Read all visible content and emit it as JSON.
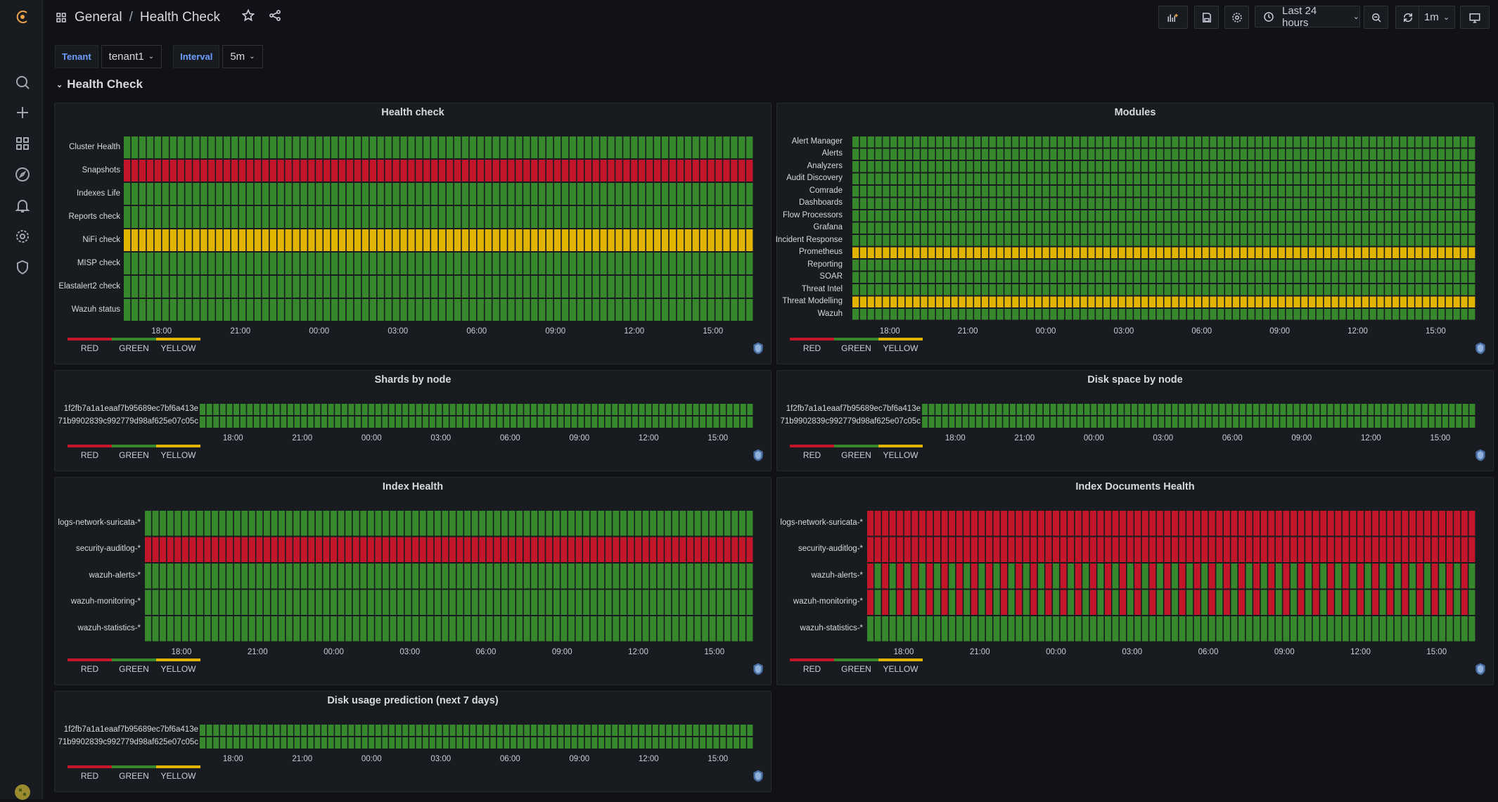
{
  "breadcrumb": {
    "folder": "General",
    "separator": "/",
    "title": "Health Check"
  },
  "toolbar": {
    "time_range": "Last 24 hours",
    "refresh": "1m"
  },
  "variables": [
    {
      "label": "Tenant",
      "value": "tenant1"
    },
    {
      "label": "Interval",
      "value": "5m"
    }
  ],
  "row": {
    "title": "Health Check"
  },
  "legend": [
    {
      "label": "RED",
      "color": "#c4162a"
    },
    {
      "label": "GREEN",
      "color": "#37872d"
    },
    {
      "label": "YELLOW",
      "color": "#e0b400"
    }
  ],
  "colors": {
    "RED": "#c4162a",
    "GREEN": "#37872d",
    "YELLOW": "#e0b400"
  },
  "time_ticks": [
    "18:00",
    "21:00",
    "00:00",
    "03:00",
    "06:00",
    "09:00",
    "12:00",
    "15:00"
  ],
  "panels": {
    "health_check": {
      "title": "Health check",
      "rows": [
        {
          "label": "Cluster Health",
          "status": "GREEN"
        },
        {
          "label": "Snapshots",
          "status": "RED"
        },
        {
          "label": "Indexes Life",
          "status": "GREEN"
        },
        {
          "label": "Reports check",
          "status": "GREEN"
        },
        {
          "label": "NiFi check",
          "status": "YELLOW"
        },
        {
          "label": "MISP check",
          "status": "GREEN"
        },
        {
          "label": "Elastalert2 check",
          "status": "GREEN"
        },
        {
          "label": "Wazuh status",
          "status": "GREEN"
        }
      ]
    },
    "modules": {
      "title": "Modules",
      "rows": [
        {
          "label": "Alert Manager",
          "status": "GREEN"
        },
        {
          "label": "Alerts",
          "status": "GREEN"
        },
        {
          "label": "Analyzers",
          "status": "GREEN"
        },
        {
          "label": "Audit Discovery",
          "status": "GREEN"
        },
        {
          "label": "Comrade",
          "status": "GREEN"
        },
        {
          "label": "Dashboards",
          "status": "GREEN"
        },
        {
          "label": "Flow Processors",
          "status": "GREEN"
        },
        {
          "label": "Grafana",
          "status": "GREEN"
        },
        {
          "label": "Incident Response",
          "status": "GREEN"
        },
        {
          "label": "Prometheus",
          "status": "YELLOW"
        },
        {
          "label": "Reporting",
          "status": "GREEN"
        },
        {
          "label": "SOAR",
          "status": "GREEN"
        },
        {
          "label": "Threat Intel",
          "status": "GREEN"
        },
        {
          "label": "Threat Modelling",
          "status": "YELLOW"
        },
        {
          "label": "Wazuh",
          "status": "GREEN"
        }
      ]
    },
    "shards": {
      "title": "Shards by node",
      "rows": [
        {
          "label": "1f2fb7a1a1eaaf7b95689ec7bf6a413e",
          "status": "GREEN"
        },
        {
          "label": "71b9902839c992779d98af625e07c05c",
          "status": "GREEN"
        }
      ]
    },
    "disk_space": {
      "title": "Disk space by node",
      "rows": [
        {
          "label": "1f2fb7a1a1eaaf7b95689ec7bf6a413e",
          "status": "GREEN"
        },
        {
          "label": "71b9902839c992779d98af625e07c05c",
          "status": "GREEN"
        }
      ]
    },
    "index_health": {
      "title": "Index Health",
      "rows": [
        {
          "label": "logs-network-suricata-*",
          "status": "GREEN"
        },
        {
          "label": "security-auditlog-*",
          "status": "RED"
        },
        {
          "label": "wazuh-alerts-*",
          "status": "GREEN"
        },
        {
          "label": "wazuh-monitoring-*",
          "status": "GREEN"
        },
        {
          "label": "wazuh-statistics-*",
          "status": "GREEN"
        }
      ]
    },
    "index_docs": {
      "title": "Index Documents Health",
      "rows": [
        {
          "label": "logs-network-suricata-*",
          "status": "RED"
        },
        {
          "label": "security-auditlog-*",
          "status": "RED"
        },
        {
          "label": "wazuh-alerts-*",
          "status": "MIXED"
        },
        {
          "label": "wazuh-monitoring-*",
          "status": "MIXED"
        },
        {
          "label": "wazuh-statistics-*",
          "status": "GREEN"
        }
      ]
    },
    "disk_prediction": {
      "title": "Disk usage prediction (next 7 days)",
      "rows": [
        {
          "label": "1f2fb7a1a1eaaf7b95689ec7bf6a413e",
          "status": "GREEN"
        },
        {
          "label": "71b9902839c992779d98af625e07c05c",
          "status": "GREEN"
        }
      ]
    }
  }
}
